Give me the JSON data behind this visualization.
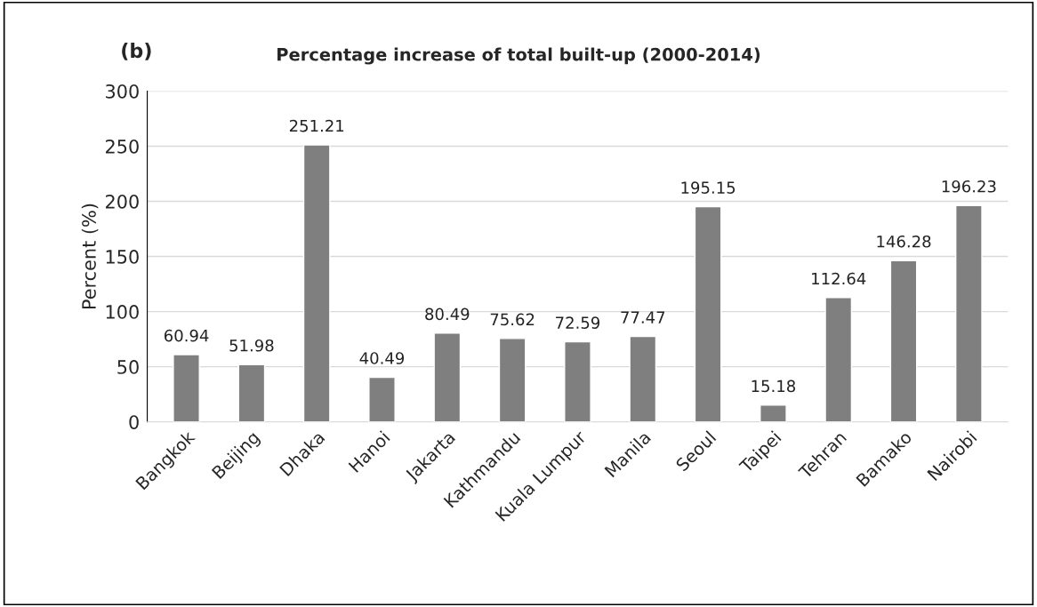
{
  "chart_data": {
    "type": "bar",
    "title": "Percentage increase of total built-up (2000-2014)",
    "ylabel": "Percent (%)",
    "annotations": [
      "(b)"
    ],
    "categories": [
      "Bangkok",
      "Beijing",
      "Dhaka",
      "Hanoi",
      "Jakarta",
      "Kathmandu",
      "Kuala Lumpur",
      "Manila",
      "Seoul",
      "Taipei",
      "Tehran",
      "Bamako",
      "Nairobi"
    ],
    "values": [
      60.94,
      51.98,
      251.21,
      40.49,
      80.49,
      75.62,
      72.59,
      77.47,
      195.15,
      15.18,
      112.64,
      146.28,
      196.23
    ],
    "color": "#7f7f7f",
    "ylim": [
      0,
      300
    ],
    "yticks": [
      0,
      50,
      100,
      150,
      200,
      250,
      300
    ],
    "grid": "y",
    "data_labels": true
  }
}
